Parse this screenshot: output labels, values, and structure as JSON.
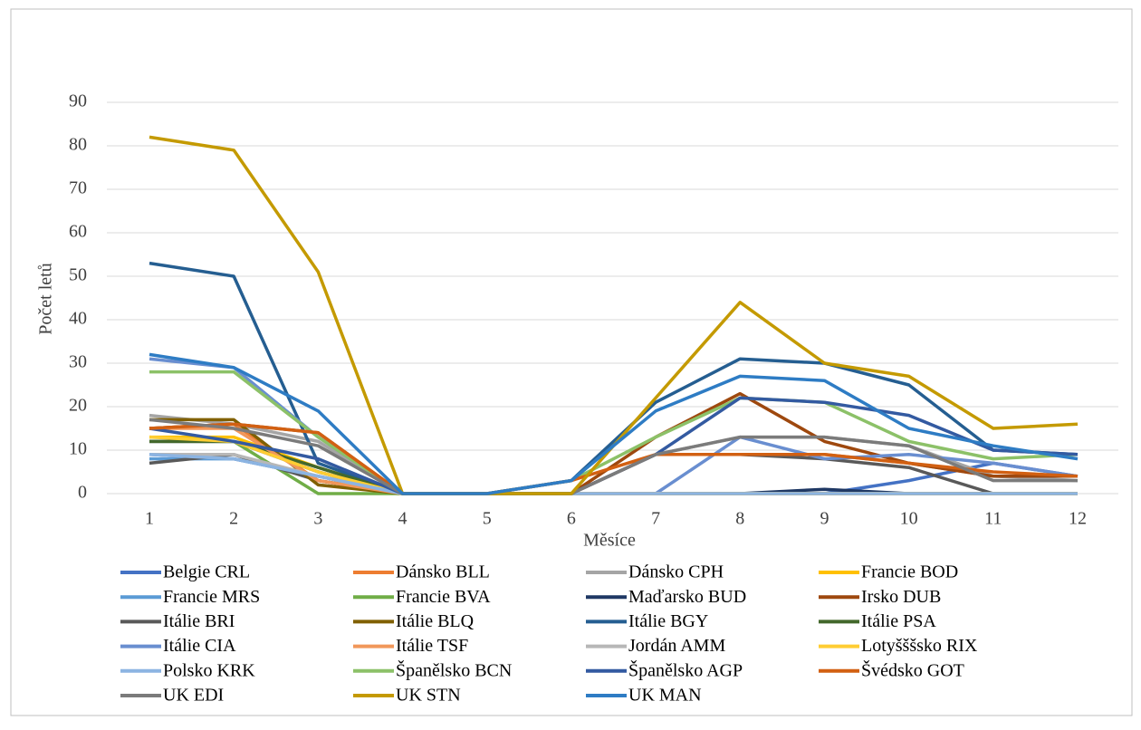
{
  "chart_data": {
    "type": "line",
    "x_label": "Měsíce",
    "y_label": "Počet letů",
    "x": [
      1,
      2,
      3,
      4,
      5,
      6,
      7,
      8,
      9,
      10,
      11,
      12
    ],
    "xlim": [
      1,
      12
    ],
    "ylim": [
      0,
      90
    ],
    "yticks": [
      0,
      10,
      20,
      30,
      40,
      50,
      60,
      70,
      80,
      90
    ],
    "grid": true,
    "legend": "bottom",
    "series": [
      {
        "name": "Belgie CRL",
        "color": "#4472c4",
        "values": [
          9,
          8,
          4,
          0,
          0,
          0,
          0,
          0,
          0,
          3,
          7,
          4
        ]
      },
      {
        "name": "Dánsko BLL",
        "color": "#ed7d31",
        "values": [
          15,
          16,
          3,
          0,
          0,
          0,
          9,
          9,
          9,
          7,
          4,
          4
        ]
      },
      {
        "name": "Dánsko CPH",
        "color": "#a5a5a5",
        "values": [
          18,
          16,
          12,
          0,
          0,
          0,
          9,
          13,
          13,
          11,
          4,
          3
        ]
      },
      {
        "name": "Francie BOD",
        "color": "#ffc000",
        "values": [
          13,
          13,
          6,
          0,
          0,
          0,
          0,
          0,
          0,
          0,
          0,
          0
        ]
      },
      {
        "name": "Francie MRS",
        "color": "#5b9bd5",
        "values": [
          8,
          8,
          4,
          0,
          0,
          0,
          0,
          0,
          0,
          0,
          0,
          0
        ]
      },
      {
        "name": "Francie BVA",
        "color": "#70ad47",
        "values": [
          12,
          12,
          0,
          0,
          0,
          0,
          0,
          0,
          0,
          0,
          0,
          0
        ]
      },
      {
        "name": "Maďarsko BUD",
        "color": "#1f3864",
        "values": [
          12,
          12,
          5,
          0,
          0,
          0,
          0,
          0,
          1,
          0,
          0,
          0
        ]
      },
      {
        "name": "Irsko DUB",
        "color": "#9e480e",
        "values": [
          15,
          16,
          14,
          0,
          0,
          0,
          13,
          23,
          12,
          7,
          4,
          4
        ]
      },
      {
        "name": "Itálie BRI",
        "color": "#595959",
        "values": [
          7,
          9,
          3,
          0,
          0,
          0,
          9,
          9,
          8,
          6,
          0,
          0
        ]
      },
      {
        "name": "Itálie BLQ",
        "color": "#806000",
        "values": [
          17,
          17,
          2,
          0,
          0,
          0,
          0,
          0,
          0,
          0,
          0,
          0
        ]
      },
      {
        "name": "Itálie BGY",
        "color": "#255e91",
        "values": [
          53,
          50,
          7,
          0,
          0,
          3,
          21,
          31,
          30,
          25,
          10,
          9
        ]
      },
      {
        "name": "Itálie PSA",
        "color": "#43682b",
        "values": [
          12,
          12,
          6,
          0,
          0,
          0,
          0,
          0,
          0,
          0,
          0,
          0
        ]
      },
      {
        "name": "Itálie CIA",
        "color": "#698ed0",
        "values": [
          31,
          29,
          13,
          0,
          0,
          0,
          0,
          13,
          8,
          9,
          7,
          4
        ]
      },
      {
        "name": "Itálie TSF",
        "color": "#f1975a",
        "values": [
          15,
          15,
          3,
          0,
          0,
          0,
          0,
          0,
          0,
          0,
          0,
          0
        ]
      },
      {
        "name": "Jordán AMM",
        "color": "#b7b7b7",
        "values": [
          9,
          9,
          4,
          0,
          0,
          0,
          0,
          0,
          0,
          0,
          0,
          0
        ]
      },
      {
        "name": "Lotyšššsko RIX",
        "color": "#ffcd33",
        "values": [
          13,
          12,
          5,
          0,
          0,
          0,
          0,
          0,
          0,
          0,
          0,
          0
        ]
      },
      {
        "name": "Polsko KRK",
        "color": "#8cb4e2",
        "values": [
          9,
          8,
          4,
          0,
          0,
          0,
          0,
          0,
          0,
          0,
          0,
          0
        ]
      },
      {
        "name": "Španělsko BCN",
        "color": "#8cc168",
        "values": [
          28,
          28,
          13,
          0,
          0,
          3,
          13,
          22,
          21,
          12,
          8,
          9
        ]
      },
      {
        "name": "Španělsko AGP",
        "color": "#335aa1",
        "values": [
          15,
          12,
          8,
          0,
          0,
          0,
          9,
          22,
          21,
          18,
          10,
          9
        ]
      },
      {
        "name": "Švédsko GOT",
        "color": "#d26012",
        "values": [
          15,
          16,
          14,
          0,
          0,
          3,
          9,
          9,
          9,
          7,
          5,
          4
        ]
      },
      {
        "name": "UK EDI",
        "color": "#7b7b7b",
        "values": [
          17,
          15,
          11,
          0,
          0,
          0,
          9,
          13,
          13,
          11,
          3,
          3
        ]
      },
      {
        "name": "UK STN",
        "color": "#c49a00",
        "values": [
          82,
          79,
          51,
          0,
          0,
          0,
          22,
          44,
          30,
          27,
          15,
          16
        ]
      },
      {
        "name": "UK MAN",
        "color": "#2e7cc4",
        "values": [
          32,
          29,
          19,
          0,
          0,
          3,
          19,
          27,
          26,
          15,
          11,
          8
        ]
      }
    ]
  }
}
